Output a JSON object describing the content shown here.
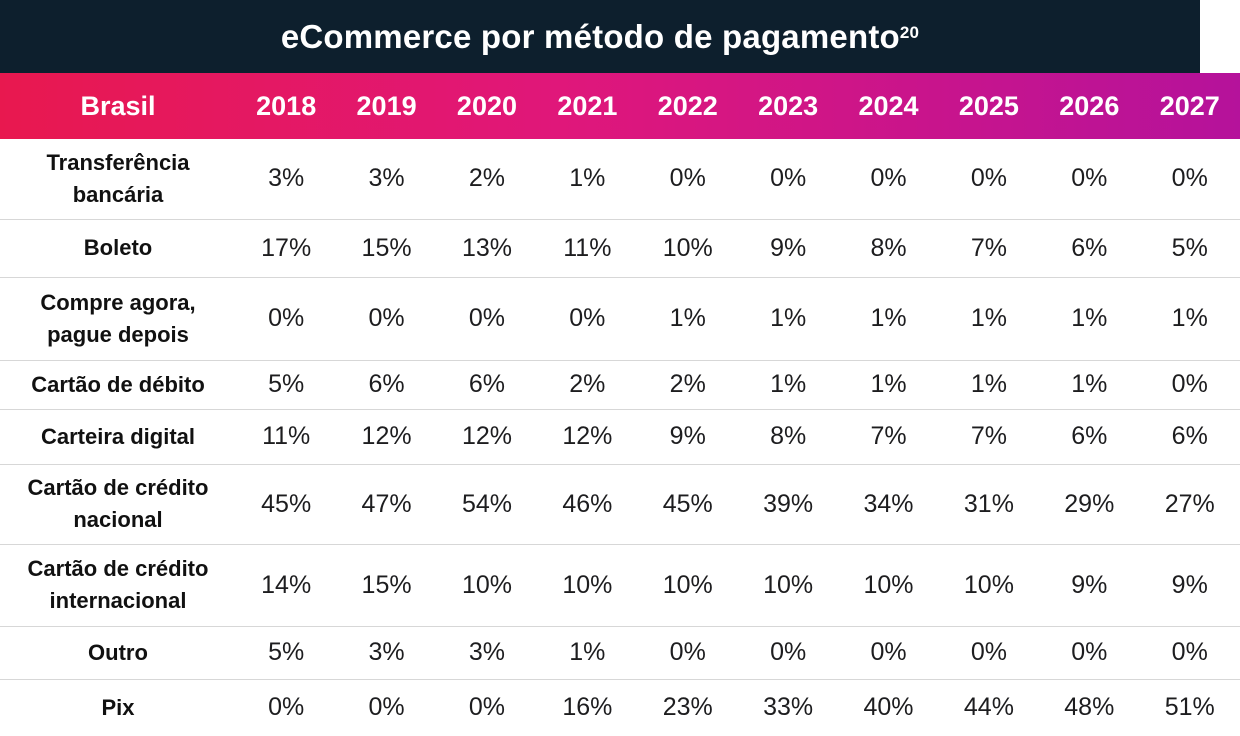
{
  "chart_data": {
    "type": "table",
    "title": "eCommerce por método de pagamento",
    "title_superscript": "20",
    "row_header": "Brasil",
    "columns": [
      "2018",
      "2019",
      "2020",
      "2021",
      "2022",
      "2023",
      "2024",
      "2025",
      "2026",
      "2027"
    ],
    "rows": [
      {
        "label_lines": [
          "Transferência",
          "bancária"
        ],
        "values": [
          "3%",
          "3%",
          "2%",
          "1%",
          "0%",
          "0%",
          "0%",
          "0%",
          "0%",
          "0%"
        ]
      },
      {
        "label_lines": [
          "Boleto"
        ],
        "values": [
          "17%",
          "15%",
          "13%",
          "11%",
          "10%",
          "9%",
          "8%",
          "7%",
          "6%",
          "5%"
        ]
      },
      {
        "label_lines": [
          "Compre agora,",
          "pague depois"
        ],
        "values": [
          "0%",
          "0%",
          "0%",
          "0%",
          "1%",
          "1%",
          "1%",
          "1%",
          "1%",
          "1%"
        ]
      },
      {
        "label_lines": [
          "Cartão de débito"
        ],
        "values": [
          "5%",
          "6%",
          "6%",
          "2%",
          "2%",
          "1%",
          "1%",
          "1%",
          "1%",
          "0%"
        ]
      },
      {
        "label_lines": [
          "Carteira digital"
        ],
        "values": [
          "11%",
          "12%",
          "12%",
          "12%",
          "9%",
          "8%",
          "7%",
          "7%",
          "6%",
          "6%"
        ]
      },
      {
        "label_lines": [
          "Cartão de crédito",
          "nacional"
        ],
        "values": [
          "45%",
          "47%",
          "54%",
          "46%",
          "45%",
          "39%",
          "34%",
          "31%",
          "29%",
          "27%"
        ]
      },
      {
        "label_lines": [
          "Cartão de crédito",
          "internacional"
        ],
        "values": [
          "14%",
          "15%",
          "10%",
          "10%",
          "10%",
          "10%",
          "10%",
          "10%",
          "9%",
          "9%"
        ]
      },
      {
        "label_lines": [
          "Outro"
        ],
        "values": [
          "5%",
          "3%",
          "3%",
          "1%",
          "0%",
          "0%",
          "0%",
          "0%",
          "0%",
          "0%"
        ]
      },
      {
        "label_lines": [
          "Pix"
        ],
        "values": [
          "0%",
          "0%",
          "0%",
          "16%",
          "23%",
          "33%",
          "40%",
          "44%",
          "48%",
          "51%"
        ]
      }
    ]
  },
  "colors": {
    "title_background": "#0d1f2d",
    "header_gradient_start": "#e8184f",
    "header_gradient_end": "#b5129b",
    "row_divider": "#d7d7d7"
  }
}
